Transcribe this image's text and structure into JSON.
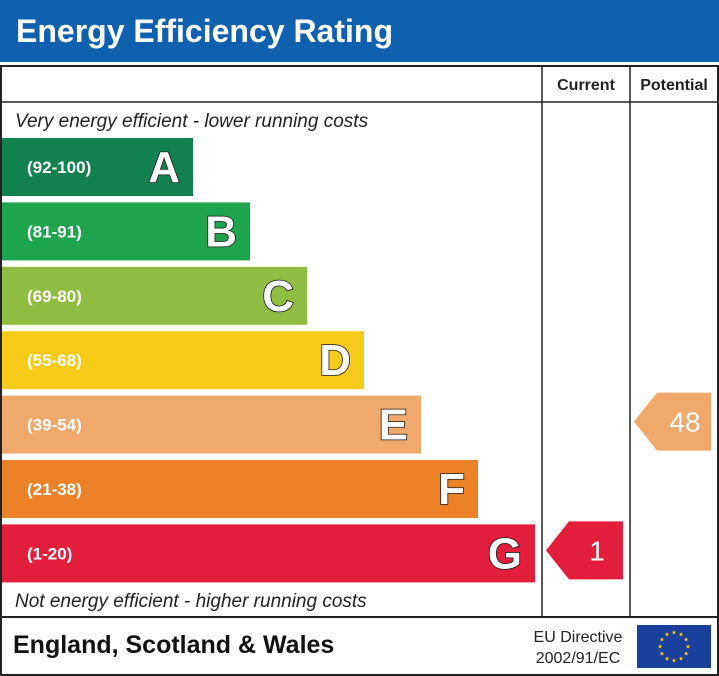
{
  "header": {
    "title": "Energy Efficiency Rating"
  },
  "chart_data": {
    "type": "bar",
    "columns": {
      "current": "Current",
      "potential": "Potential"
    },
    "top_note": "Very energy efficient - lower running costs",
    "bottom_note": "Not energy efficient - higher running costs",
    "bands": [
      {
        "letter": "A",
        "range": "(92-100)",
        "min": 92,
        "max": 100,
        "color": "#128150"
      },
      {
        "letter": "B",
        "range": "(81-91)",
        "min": 81,
        "max": 91,
        "color": "#1ea44d"
      },
      {
        "letter": "C",
        "range": "(69-80)",
        "min": 69,
        "max": 80,
        "color": "#8fbd41"
      },
      {
        "letter": "D",
        "range": "(55-68)",
        "min": 55,
        "max": 68,
        "color": "#f6cb18"
      },
      {
        "letter": "E",
        "range": "(39-54)",
        "min": 39,
        "max": 54,
        "color": "#f0a86b"
      },
      {
        "letter": "F",
        "range": "(21-38)",
        "min": 21,
        "max": 38,
        "color": "#ec8128"
      },
      {
        "letter": "G",
        "range": "(1-20)",
        "min": 1,
        "max": 20,
        "color": "#e31d3c"
      }
    ],
    "current": {
      "value": 1,
      "label": "1",
      "band": "G",
      "color": "#e31d3c"
    },
    "potential": {
      "value": 48,
      "label": "48",
      "band": "E",
      "color": "#f0a86b"
    }
  },
  "footer": {
    "region": "England, Scotland & Wales",
    "directive_line1": "EU Directive",
    "directive_line2": "2002/91/EC"
  },
  "icons": {
    "flag": "eu-flag-icon"
  }
}
